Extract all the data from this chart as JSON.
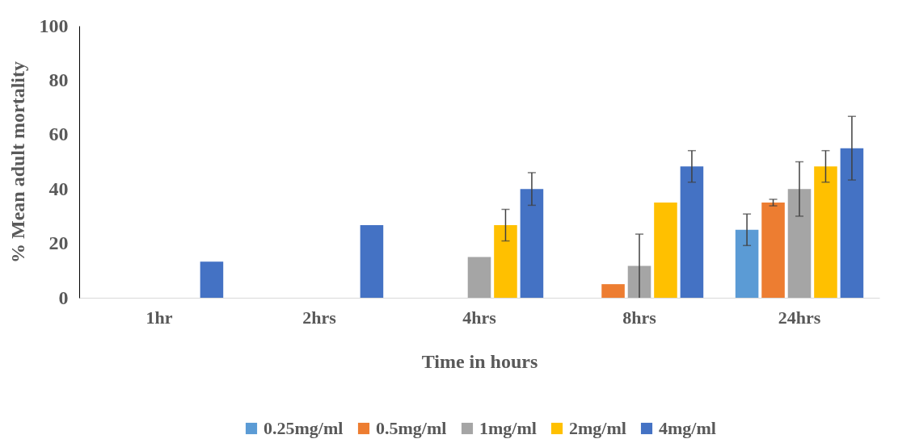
{
  "chart_data": {
    "type": "bar",
    "xlabel": "Time in hours",
    "ylabel": "% Mean adult mortality",
    "categories": [
      "1hr",
      "2hrs",
      "4hrs",
      "8hrs",
      "24hrs"
    ],
    "series": [
      {
        "name": "0.25mg/ml",
        "color": "#5b9bd5",
        "values": [
          0,
          0,
          0,
          0,
          25
        ],
        "errors": [
          null,
          null,
          null,
          null,
          5.8
        ]
      },
      {
        "name": "0.5mg/ml",
        "color": "#ed7d31",
        "values": [
          0,
          0,
          0,
          5,
          35
        ],
        "errors": [
          null,
          null,
          null,
          null,
          1.2
        ]
      },
      {
        "name": "1mg/ml",
        "color": "#a5a5a5",
        "values": [
          0,
          0,
          15,
          11.7,
          40
        ],
        "errors": [
          null,
          null,
          null,
          11.7,
          10
        ]
      },
      {
        "name": "2mg/ml",
        "color": "#ffc000",
        "values": [
          0,
          0,
          26.7,
          35,
          48.3
        ],
        "errors": [
          null,
          null,
          5.8,
          null,
          5.8
        ]
      },
      {
        "name": "4mg/ml",
        "color": "#4472c4",
        "values": [
          13.3,
          26.7,
          40,
          48.3,
          55
        ],
        "errors": [
          null,
          null,
          6,
          5.8,
          11.7
        ]
      }
    ],
    "ylim": [
      0,
      100
    ],
    "yticks": [
      0,
      20,
      40,
      60,
      80,
      100
    ],
    "grid": false,
    "legend": "bottom"
  }
}
